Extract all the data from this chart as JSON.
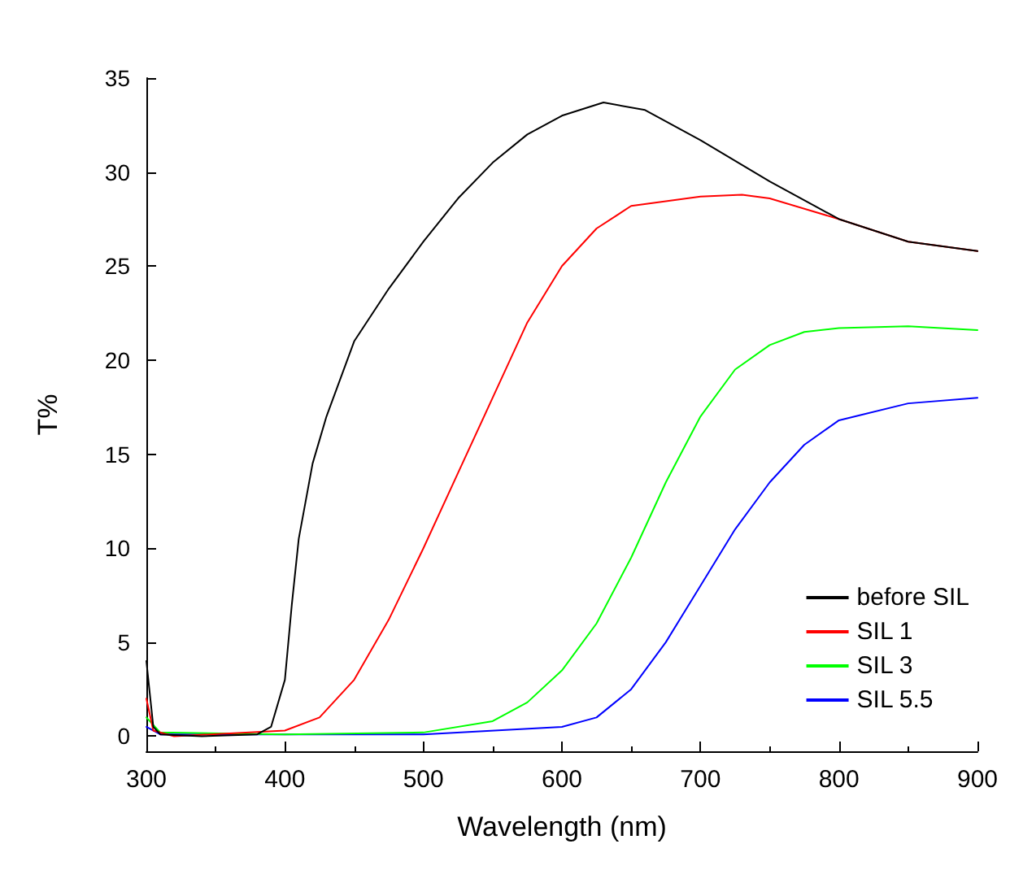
{
  "chart_data": {
    "type": "line",
    "xlabel": "Wavelength (nm)",
    "ylabel": "T%",
    "xlim": [
      300,
      900
    ],
    "xticks": [
      300,
      400,
      500,
      600,
      700,
      800,
      900
    ],
    "ylim": [
      -0.8,
      35
    ],
    "yticks": [
      0,
      5,
      10,
      15,
      20,
      25,
      30,
      35
    ],
    "grid": false,
    "legend": "bottom right",
    "marker": "none",
    "line_style": "solid",
    "series": [
      {
        "name": "before SIL",
        "color": "#000000",
        "x": [
          300,
          305,
          310,
          340,
          380,
          390,
          400,
          405,
          410,
          420,
          430,
          450,
          475,
          500,
          525,
          550,
          575,
          600,
          630,
          660,
          700,
          750,
          800,
          850,
          900
        ],
        "values": [
          4,
          0.5,
          0.1,
          0,
          0.1,
          0.5,
          3,
          7,
          10.5,
          14.5,
          17,
          21,
          23.8,
          26.3,
          28.6,
          30.5,
          32,
          33,
          33.7,
          33.3,
          31.7,
          29.5,
          27.5,
          26.3,
          25.8
        ]
      },
      {
        "name": "SIL 1",
        "color": "#ff0000",
        "x": [
          300,
          305,
          320,
          400,
          425,
          450,
          475,
          500,
          525,
          550,
          575,
          600,
          625,
          650,
          700,
          730,
          750,
          800,
          850,
          900
        ],
        "values": [
          2,
          0.3,
          0,
          0.3,
          1,
          3,
          6.2,
          10,
          14,
          18,
          22,
          25,
          27,
          28.2,
          28.7,
          28.8,
          28.6,
          27.5,
          26.3,
          25.8
        ]
      },
      {
        "name": "SIL 3",
        "color": "#00ff00",
        "x": [
          300,
          310,
          400,
          500,
          550,
          575,
          600,
          625,
          650,
          675,
          700,
          725,
          750,
          775,
          800,
          850,
          900
        ],
        "values": [
          1,
          0.2,
          0.1,
          0.2,
          0.8,
          1.8,
          3.5,
          6,
          9.5,
          13.5,
          17,
          19.5,
          20.8,
          21.5,
          21.7,
          21.8,
          21.6
        ]
      },
      {
        "name": "SIL 5.5",
        "color": "#0000ff",
        "x": [
          300,
          310,
          500,
          600,
          625,
          650,
          675,
          700,
          725,
          750,
          775,
          800,
          850,
          900
        ],
        "values": [
          0.5,
          0.1,
          0.1,
          0.5,
          1,
          2.5,
          5,
          8,
          11,
          13.5,
          15.5,
          16.8,
          17.7,
          18
        ]
      }
    ]
  }
}
